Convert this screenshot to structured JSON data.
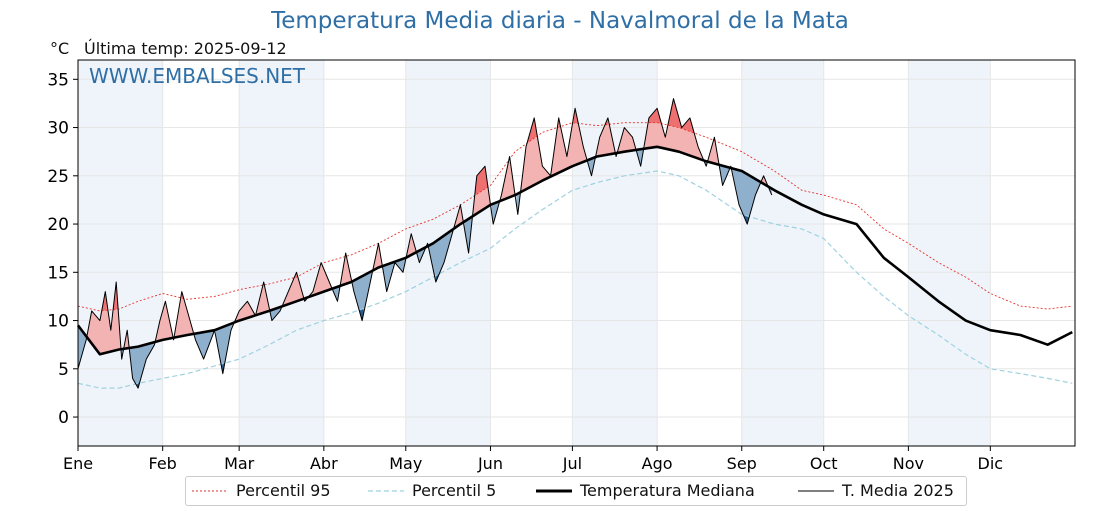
{
  "title": "Temperatura Media diaria - Navalmoral de la Mata",
  "unit_label": "°C",
  "last_temp_label": "Última temp: 2025-09-12",
  "watermark": "WWW.EMBALSES.NET",
  "colors": {
    "title": "#2f6fa6",
    "p95": "#e8322c",
    "p5": "#9fd1e0",
    "median": "#000000",
    "year": "#000000",
    "above_fill": "#f4b3b3",
    "above_strong": "#ef7070",
    "below_fill": "#8fb0cc",
    "below_strong": "#2a5d8f",
    "month_shade": "#eef4fa"
  },
  "legend": {
    "p95": "Percentil 95",
    "p5": "Percentil 5",
    "median": "Temperatura Mediana",
    "year": "T. Media 2025"
  },
  "chart_data": {
    "type": "line",
    "title": "Temperatura Media diaria - Navalmoral de la Mata",
    "ylabel": "°C",
    "ylim": [
      -3,
      37
    ],
    "yticks": [
      0,
      5,
      10,
      15,
      20,
      25,
      30,
      35
    ],
    "xlim": [
      0,
      365
    ],
    "months": [
      "Ene",
      "Feb",
      "Mar",
      "Abr",
      "May",
      "Jun",
      "Jul",
      "Ago",
      "Sep",
      "Oct",
      "Nov",
      "Dic"
    ],
    "month_starts": [
      0,
      31,
      59,
      90,
      120,
      151,
      181,
      212,
      243,
      273,
      304,
      334
    ],
    "shaded_months": [
      0,
      2,
      4,
      6,
      8,
      10
    ],
    "grid": true,
    "legend_position": "bottom",
    "series": [
      {
        "name": "Percentil 95",
        "style": "dotted",
        "x": [
          0,
          8,
          15,
          22,
          31,
          40,
          50,
          59,
          70,
          80,
          90,
          100,
          110,
          120,
          130,
          140,
          151,
          160,
          170,
          181,
          190,
          200,
          212,
          220,
          230,
          243,
          255,
          265,
          273,
          285,
          295,
          304,
          315,
          325,
          334,
          345,
          355,
          364
        ],
        "y": [
          11.5,
          11,
          11.2,
          12,
          12.8,
          12.2,
          12.5,
          13.2,
          13.8,
          14.5,
          16,
          16.8,
          18,
          19.5,
          20.5,
          22,
          24,
          27.5,
          29.5,
          30.5,
          30.2,
          30.5,
          30.5,
          30,
          29,
          27.5,
          25.5,
          23.5,
          23,
          22,
          19.5,
          18,
          16,
          14.5,
          12.8,
          11.5,
          11.2,
          11.5
        ]
      },
      {
        "name": "Percentil 5",
        "style": "dashed",
        "x": [
          0,
          8,
          15,
          22,
          31,
          40,
          50,
          59,
          70,
          80,
          90,
          100,
          110,
          120,
          130,
          140,
          151,
          160,
          170,
          181,
          190,
          200,
          212,
          220,
          230,
          243,
          255,
          265,
          273,
          285,
          295,
          304,
          315,
          325,
          334,
          345,
          355,
          364
        ],
        "y": [
          3.5,
          3,
          3,
          3.5,
          4,
          4.5,
          5.3,
          6,
          7.5,
          9,
          10,
          10.8,
          11.8,
          13,
          14.5,
          16,
          17.5,
          19.5,
          21.5,
          23.5,
          24.3,
          25,
          25.5,
          25,
          23.5,
          21,
          20,
          19.5,
          18.5,
          15,
          12.5,
          10.5,
          8.5,
          6.5,
          5,
          4.5,
          4,
          3.5
        ]
      },
      {
        "name": "Temperatura Mediana",
        "style": "bold",
        "x": [
          0,
          8,
          15,
          22,
          31,
          40,
          50,
          59,
          70,
          80,
          90,
          100,
          110,
          120,
          130,
          140,
          151,
          160,
          170,
          181,
          190,
          200,
          212,
          220,
          230,
          243,
          255,
          265,
          273,
          285,
          295,
          304,
          315,
          325,
          334,
          345,
          355,
          364
        ],
        "y": [
          9.5,
          6.5,
          7,
          7.3,
          8,
          8.5,
          9,
          10,
          11,
          12,
          13,
          14,
          15.5,
          16.5,
          18,
          20,
          22,
          23,
          24.5,
          26,
          27,
          27.5,
          28,
          27.5,
          26.5,
          25.5,
          23.5,
          22,
          21,
          20,
          16.5,
          14.5,
          12,
          10,
          9,
          8.5,
          7.5,
          8.8
        ]
      },
      {
        "name": "T. Media 2025",
        "style": "thin",
        "x": [
          0,
          3,
          5,
          8,
          10,
          12,
          14,
          16,
          18,
          20,
          22,
          25,
          28,
          30,
          32,
          35,
          38,
          40,
          43,
          46,
          50,
          53,
          56,
          59,
          62,
          65,
          68,
          71,
          74,
          77,
          80,
          83,
          86,
          89,
          92,
          95,
          98,
          101,
          104,
          107,
          110,
          113,
          116,
          119,
          122,
          125,
          128,
          131,
          134,
          137,
          140,
          143,
          146,
          149,
          152,
          155,
          158,
          161,
          164,
          167,
          170,
          173,
          176,
          179,
          182,
          185,
          188,
          191,
          194,
          197,
          200,
          203,
          206,
          209,
          212,
          215,
          218,
          221,
          224,
          227,
          230,
          233,
          236,
          239,
          242,
          245,
          248,
          251,
          254
        ],
        "y": [
          5,
          8,
          11,
          10,
          13,
          9,
          14,
          6,
          9,
          4,
          3,
          6,
          7.5,
          10,
          12,
          8,
          13,
          11,
          8,
          6,
          9,
          4.5,
          9,
          11,
          12,
          10.5,
          14,
          10,
          11,
          13,
          15,
          12,
          13,
          16,
          14,
          12,
          17,
          13,
          10,
          14,
          18,
          13,
          16,
          15,
          19,
          16,
          18,
          14,
          16,
          19,
          22,
          17,
          25,
          26,
          20,
          23,
          27,
          21,
          28,
          31,
          26,
          25,
          31,
          27,
          32,
          28,
          25,
          29,
          31,
          27,
          30,
          29,
          26,
          31,
          32,
          29,
          33,
          30,
          31,
          28,
          26,
          29,
          24,
          26,
          22,
          20,
          23,
          25,
          23
        ]
      }
    ]
  }
}
